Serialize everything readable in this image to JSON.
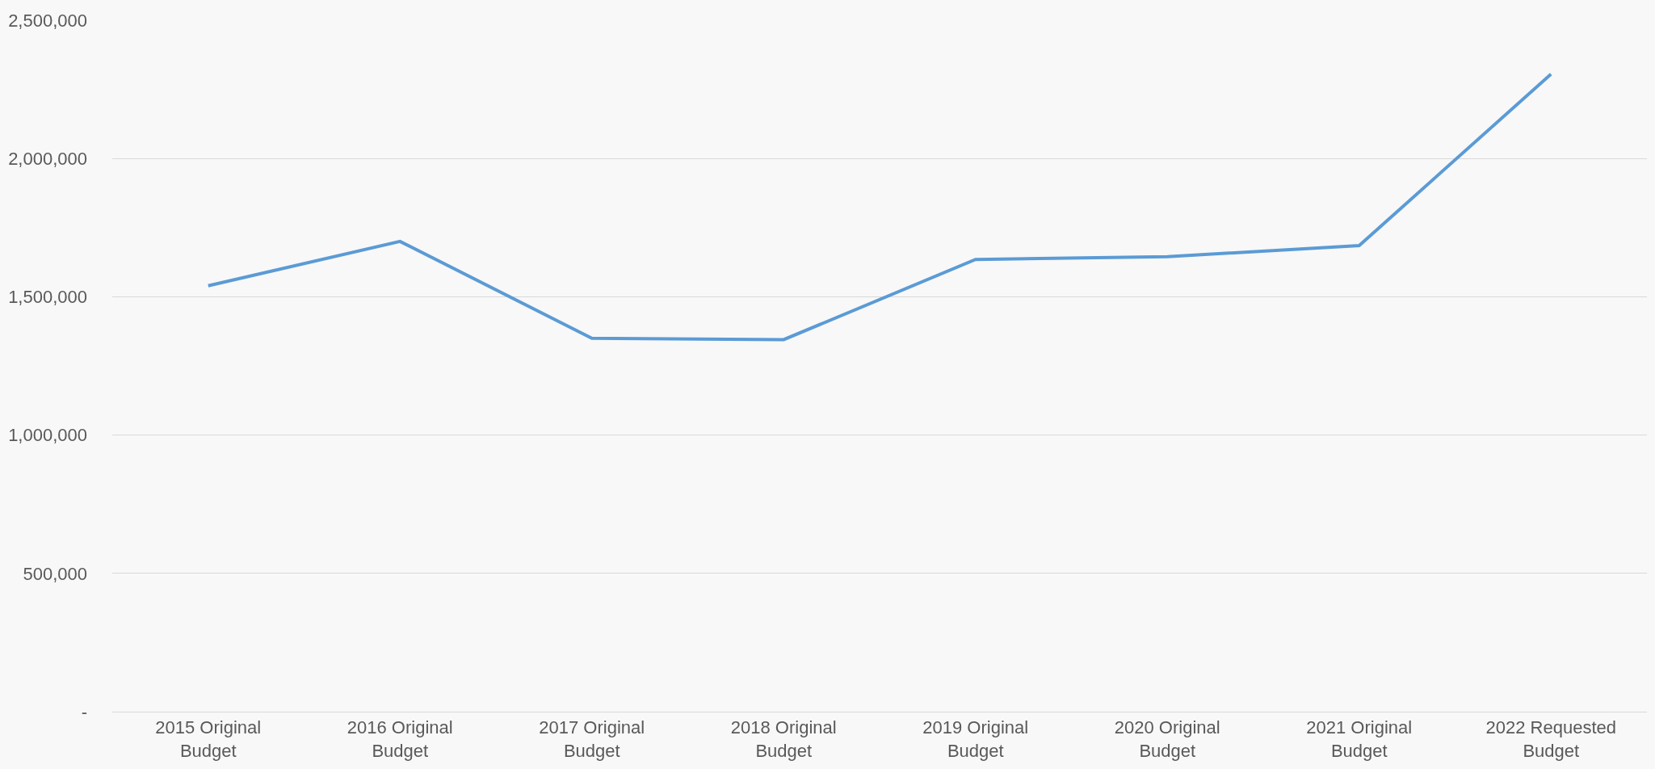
{
  "chart_data": {
    "type": "line",
    "categories": [
      "2015 Original Budget",
      "2016 Original Budget",
      "2017 Original Budget",
      "2018 Original Budget",
      "2019 Original Budget",
      "2020 Original Budget",
      "2021 Original Budget",
      "2022 Requested Budget"
    ],
    "series": [
      {
        "color": "#5b9bd5",
        "values": [
          1540000,
          1700000,
          1350000,
          1345000,
          1635000,
          1645000,
          1685000,
          2305000
        ]
      }
    ],
    "ylim": [
      0,
      2500000
    ],
    "yticks": [
      {
        "value": 0,
        "label": "-"
      },
      {
        "value": 500000,
        "label": "500,000"
      },
      {
        "value": 1000000,
        "label": "1,000,000"
      },
      {
        "value": 1500000,
        "label": "1,500,000"
      },
      {
        "value": 2000000,
        "label": "2,000,000"
      },
      {
        "value": 2500000,
        "label": "2,500,000"
      }
    ],
    "grid": "y",
    "marker": "none",
    "line_style": "solid"
  }
}
